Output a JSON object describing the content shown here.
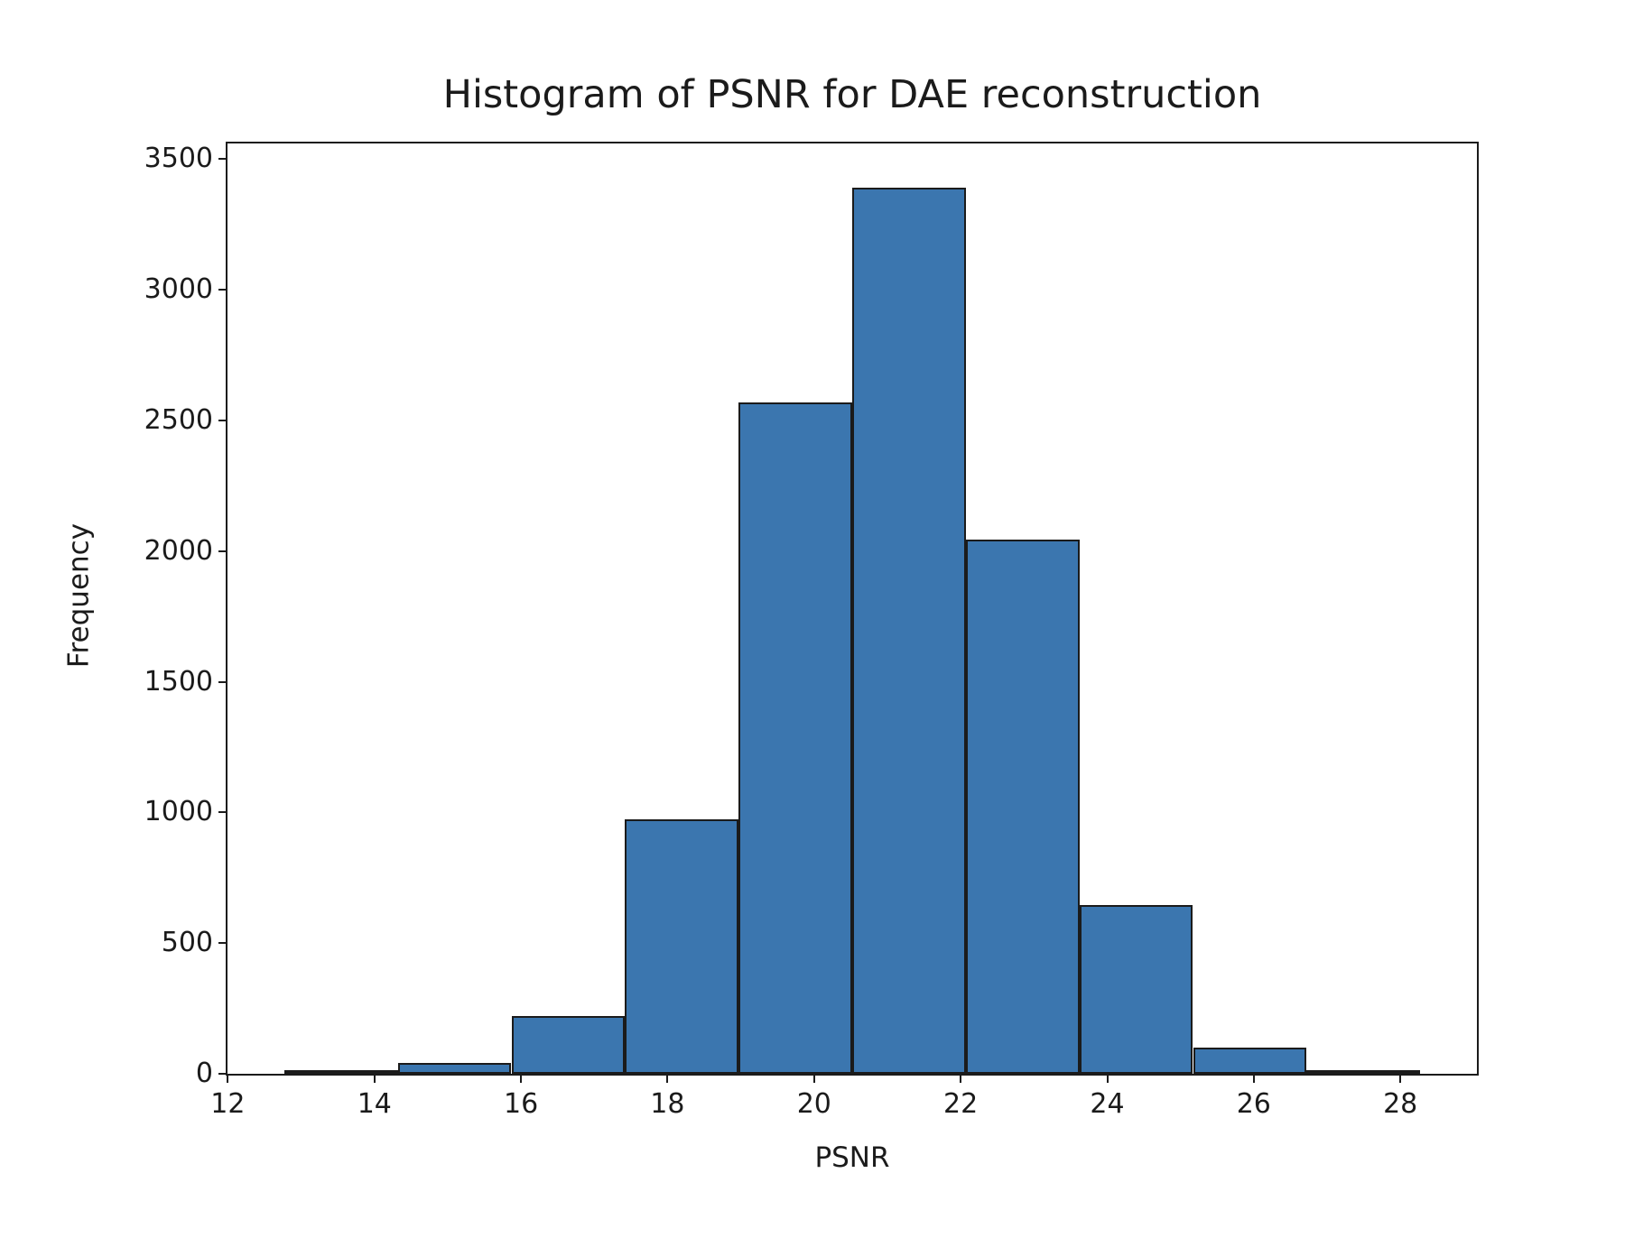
{
  "chart_data": {
    "type": "bar",
    "subtype": "histogram",
    "title": "Histogram of PSNR for DAE reconstruction",
    "xlabel": "PSNR",
    "ylabel": "Frequency",
    "bin_edges": [
      12.77,
      14.32,
      15.87,
      17.42,
      18.97,
      20.52,
      22.07,
      23.62,
      25.17,
      26.72,
      28.27
    ],
    "counts": [
      10,
      40,
      220,
      975,
      2570,
      3390,
      2045,
      645,
      100,
      12
    ],
    "xticks": [
      12,
      14,
      16,
      18,
      20,
      22,
      24,
      26,
      28
    ],
    "yticks": [
      0,
      500,
      1000,
      1500,
      2000,
      2500,
      3000,
      3500
    ],
    "xlim": [
      11.995,
      29.045
    ],
    "ylim": [
      0,
      3560
    ],
    "grid": false,
    "legend": null,
    "bar_color": "#3b76af",
    "bar_edge_color": "#1b1b1b",
    "axis_color": "#1b1b1b",
    "background_color": "#ffffff"
  }
}
